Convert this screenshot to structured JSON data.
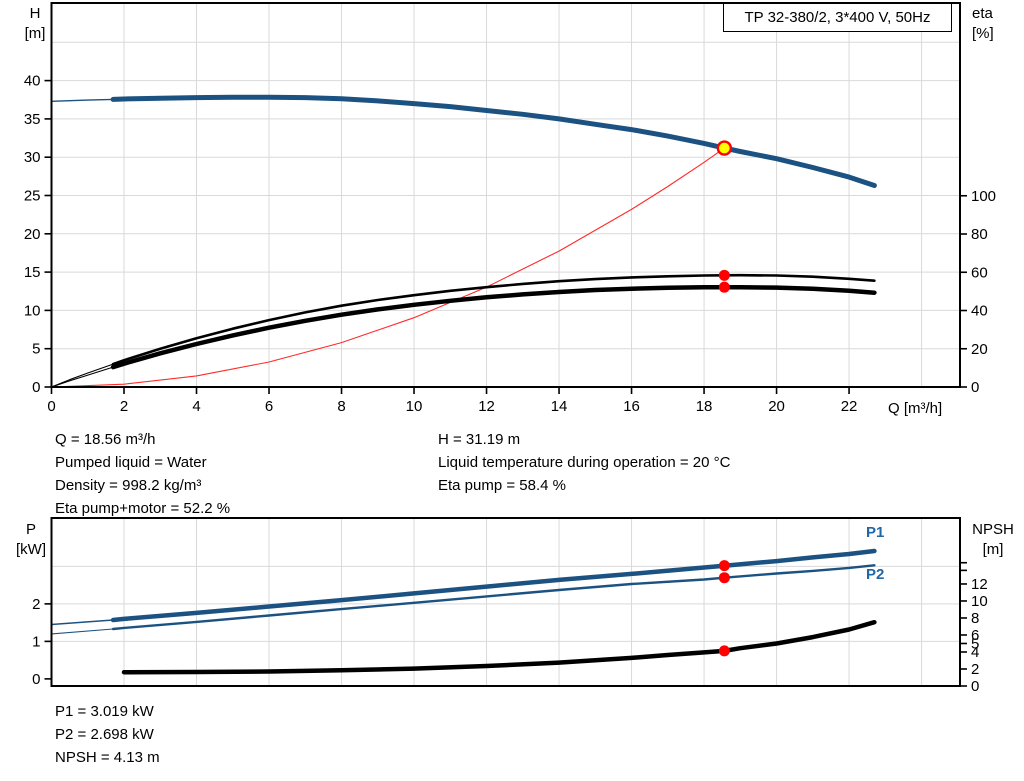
{
  "title_box": {
    "label": "TP 32-380/2, 3*400 V, 50Hz"
  },
  "axes": {
    "h": {
      "line1": "H",
      "line2": "[m]"
    },
    "eta": {
      "line1": "eta",
      "line2": "[%]"
    },
    "q_unit": "Q [m³/h]",
    "p": {
      "line1": "P",
      "line2": "[kW]"
    },
    "npsh": {
      "line1": "NPSH",
      "line2": "[m]"
    }
  },
  "curve_labels": {
    "p1": "P1",
    "p2": "P2"
  },
  "annotations": {
    "left": [
      "Q = 18.56 m³/h",
      "Pumped liquid = Water",
      "Density = 998.2 kg/m³",
      "Eta pump+motor = 52.2 %"
    ],
    "right": [
      "H = 31.19 m",
      "Liquid temperature during operation = 20 °C",
      "Eta pump = 58.4 %"
    ],
    "bottom": [
      "P1 = 3.019 kW",
      "P2 = 2.698 kW",
      "NPSH = 4.13 m"
    ]
  },
  "colors": {
    "curve_blue": "#1c5282",
    "label_blue": "#2166a5",
    "curve_black": "#000000",
    "duty_red": "#ff0000",
    "duty_yellow": "#ffff00",
    "grid_gray": "#d9d9d9",
    "frame_black": "#000000"
  },
  "duty_point": {
    "Q": 18.56,
    "H": 31.19,
    "eta_pump": 58.4,
    "eta_pump_motor": 52.2,
    "P1": 3.019,
    "P2": 2.698,
    "NPSH": 4.13
  },
  "chart_data": [
    {
      "type": "line",
      "title": "TP 32-380/2, 3*400 V, 50Hz",
      "xlabel": "Q [m³/h]",
      "ylabel_left": "H [m]",
      "ylabel_right": "eta [%]",
      "x_axis": {
        "min": 0,
        "max": 25.06,
        "tick_labels": [
          0,
          2,
          4,
          6,
          8,
          10,
          12,
          14,
          16,
          18,
          20,
          22
        ],
        "gridlines": [
          2,
          4,
          6,
          8,
          10,
          12,
          14,
          16,
          18,
          20,
          22,
          24
        ]
      },
      "y_left": {
        "min": 0,
        "max": 50.13,
        "tick_labels": [
          0,
          5,
          10,
          15,
          20,
          25,
          30,
          35,
          40
        ],
        "gridlines": [
          5,
          10,
          15,
          20,
          25,
          30,
          35,
          40,
          45
        ]
      },
      "y_right": {
        "min": 0,
        "max": 200.8,
        "tick_labels": [
          0,
          20,
          40,
          60,
          80,
          100
        ],
        "unlabeled_ticks": []
      },
      "legend": "none",
      "grid": true,
      "series": [
        {
          "name": "system-curve",
          "axis": "left",
          "color": "#ff2a2a",
          "width": 1.1,
          "points": [
            [
              0,
              0
            ],
            [
              2,
              0.36
            ],
            [
              4,
              1.45
            ],
            [
              6,
              3.26
            ],
            [
              8,
              5.79
            ],
            [
              10,
              9.05
            ],
            [
              12,
              13.04
            ],
            [
              14,
              17.74
            ],
            [
              16,
              23.18
            ],
            [
              17,
              26.17
            ],
            [
              18,
              29.33
            ],
            [
              18.56,
              31.19
            ]
          ]
        },
        {
          "name": "qh-pump-curve",
          "axis": "left",
          "color": "#1c5282",
          "width": 5,
          "width_thin": 1.4,
          "thick_from": 1.7,
          "points": [
            [
              0,
              37.3
            ],
            [
              1,
              37.45
            ],
            [
              1.7,
              37.55
            ],
            [
              2,
              37.6
            ],
            [
              3,
              37.7
            ],
            [
              4,
              37.78
            ],
            [
              5,
              37.82
            ],
            [
              6,
              37.83
            ],
            [
              7,
              37.78
            ],
            [
              8,
              37.62
            ],
            [
              9,
              37.35
            ],
            [
              10,
              37.0
            ],
            [
              11,
              36.6
            ],
            [
              12,
              36.1
            ],
            [
              13,
              35.6
            ],
            [
              14,
              35.0
            ],
            [
              15,
              34.3
            ],
            [
              16,
              33.6
            ],
            [
              17,
              32.75
            ],
            [
              18,
              31.8
            ],
            [
              18.56,
              31.19
            ],
            [
              19,
              30.75
            ],
            [
              20,
              29.8
            ],
            [
              21,
              28.65
            ],
            [
              22,
              27.4
            ],
            [
              22.7,
              26.3
            ]
          ]
        },
        {
          "name": "eta-pump-curve",
          "axis": "right",
          "color": "#000000",
          "width": 2.6,
          "width_thin": 1.1,
          "thick_from": 1.7,
          "points": [
            [
              0,
              0
            ],
            [
              0.5,
              3.8
            ],
            [
              1,
              7.3
            ],
            [
              1.7,
              12
            ],
            [
              2,
              14
            ],
            [
              3,
              20
            ],
            [
              4,
              25.5
            ],
            [
              5,
              30.5
            ],
            [
              6,
              35
            ],
            [
              7,
              39
            ],
            [
              8,
              42.5
            ],
            [
              9,
              45.5
            ],
            [
              10,
              48
            ],
            [
              11,
              50.3
            ],
            [
              12,
              52.2
            ],
            [
              13,
              53.9
            ],
            [
              14,
              55.3
            ],
            [
              15,
              56.4
            ],
            [
              16,
              57.3
            ],
            [
              17,
              57.9
            ],
            [
              18,
              58.3
            ],
            [
              18.56,
              58.4
            ],
            [
              19,
              58.45
            ],
            [
              20,
              58.3
            ],
            [
              21,
              57.7
            ],
            [
              22,
              56.6
            ],
            [
              22.7,
              55.6
            ]
          ]
        },
        {
          "name": "eta-pump-motor-curve",
          "axis": "right",
          "color": "#000000",
          "width": 4.5,
          "width_thin": 1.1,
          "thick_from": 1.7,
          "points": [
            [
              0,
              0
            ],
            [
              0.5,
              3.2
            ],
            [
              1,
              6.2
            ],
            [
              1.7,
              10.4
            ],
            [
              2,
              12.2
            ],
            [
              3,
              17.6
            ],
            [
              4,
              22.5
            ],
            [
              5,
              27
            ],
            [
              6,
              31
            ],
            [
              7,
              34.6
            ],
            [
              8,
              37.8
            ],
            [
              9,
              40.6
            ],
            [
              10,
              43
            ],
            [
              11,
              45.1
            ],
            [
              12,
              46.9
            ],
            [
              13,
              48.4
            ],
            [
              14,
              49.7
            ],
            [
              15,
              50.7
            ],
            [
              16,
              51.4
            ],
            [
              17,
              51.9
            ],
            [
              18,
              52.15
            ],
            [
              18.56,
              52.2
            ],
            [
              19,
              52.2
            ],
            [
              20,
              52.0
            ],
            [
              21,
              51.4
            ],
            [
              22,
              50.3
            ],
            [
              22.7,
              49.3
            ]
          ]
        }
      ],
      "markers": [
        {
          "name": "duty-point-marker",
          "axis": "left",
          "x": 18.56,
          "y": 31.19,
          "style": "duty"
        },
        {
          "name": "eta-pump-duty-dot",
          "axis": "right",
          "x": 18.56,
          "y": 58.4,
          "style": "dot"
        },
        {
          "name": "eta-pump-motor-duty-dot",
          "axis": "right",
          "x": 18.56,
          "y": 52.2,
          "style": "dot"
        }
      ]
    },
    {
      "type": "line",
      "title": "",
      "xlabel": "",
      "ylabel_left": "P [kW]",
      "ylabel_right": "NPSH [m]",
      "x_axis": {
        "min": 0,
        "max": 25.06,
        "tick_labels": [],
        "gridlines": [
          2,
          4,
          6,
          8,
          10,
          12,
          14,
          16,
          18,
          20,
          22,
          24
        ]
      },
      "y_left": {
        "min": -0.19,
        "max": 4.29,
        "tick_labels": [
          0,
          1,
          2
        ],
        "gridlines": [
          1,
          2,
          3
        ]
      },
      "y_right": {
        "min": 0,
        "max": 19.76,
        "tick_labels": [
          0,
          2,
          4,
          5,
          6,
          8,
          10,
          12
        ],
        "unlabeled_ticks": [
          13.6,
          14.5
        ]
      },
      "legend": "P1 / P2 labels at curve ends",
      "grid": true,
      "series": [
        {
          "name": "p1-curve",
          "axis": "left",
          "color": "#1c5282",
          "width": 4.5,
          "width_thin": 1.4,
          "thick_from": 1.7,
          "points": [
            [
              0,
              1.45
            ],
            [
              1.7,
              1.57
            ],
            [
              2,
              1.6
            ],
            [
              4,
              1.76
            ],
            [
              6,
              1.93
            ],
            [
              8,
              2.1
            ],
            [
              10,
              2.28
            ],
            [
              12,
              2.46
            ],
            [
              14,
              2.64
            ],
            [
              16,
              2.8
            ],
            [
              18,
              2.97
            ],
            [
              18.56,
              3.019
            ],
            [
              20,
              3.14
            ],
            [
              21,
              3.24
            ],
            [
              22,
              3.33
            ],
            [
              22.7,
              3.41
            ]
          ]
        },
        {
          "name": "p2-curve",
          "axis": "left",
          "color": "#1c5282",
          "width": 2.4,
          "width_thin": 1.1,
          "thick_from": 1.7,
          "points": [
            [
              0,
              1.2
            ],
            [
              1.7,
              1.33
            ],
            [
              2,
              1.36
            ],
            [
              4,
              1.52
            ],
            [
              6,
              1.69
            ],
            [
              8,
              1.86
            ],
            [
              10,
              2.03
            ],
            [
              12,
              2.2
            ],
            [
              14,
              2.37
            ],
            [
              16,
              2.53
            ],
            [
              18,
              2.65
            ],
            [
              18.56,
              2.698
            ],
            [
              20,
              2.81
            ],
            [
              21,
              2.88
            ],
            [
              22,
              2.96
            ],
            [
              22.7,
              3.03
            ]
          ]
        },
        {
          "name": "npsh-curve",
          "axis": "right",
          "color": "#000000",
          "width": 4.5,
          "width_thin": 1.2,
          "thick_from": 1.7,
          "points": [
            [
              0,
              1.6
            ],
            [
              2,
              1.62
            ],
            [
              4,
              1.65
            ],
            [
              6,
              1.7
            ],
            [
              8,
              1.85
            ],
            [
              10,
              2.05
            ],
            [
              12,
              2.35
            ],
            [
              14,
              2.75
            ],
            [
              16,
              3.3
            ],
            [
              17,
              3.65
            ],
            [
              18,
              3.95
            ],
            [
              18.56,
              4.13
            ],
            [
              19,
              4.45
            ],
            [
              20,
              5.0
            ],
            [
              21,
              5.75
            ],
            [
              22,
              6.65
            ],
            [
              22.7,
              7.5
            ]
          ]
        }
      ],
      "markers": [
        {
          "name": "p1-duty-dot",
          "axis": "left",
          "x": 18.56,
          "y": 3.019,
          "style": "dot"
        },
        {
          "name": "p2-duty-dot",
          "axis": "left",
          "x": 18.56,
          "y": 2.698,
          "style": "dot"
        },
        {
          "name": "npsh-duty-dot",
          "axis": "right",
          "x": 18.56,
          "y": 4.13,
          "style": "dot"
        }
      ]
    }
  ]
}
